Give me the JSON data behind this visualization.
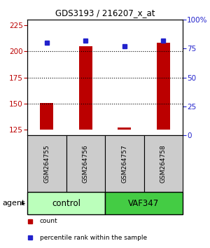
{
  "title": "GDS3193 / 216207_x_at",
  "samples": [
    "GSM264755",
    "GSM264756",
    "GSM264757",
    "GSM264758"
  ],
  "counts": [
    151,
    205,
    127,
    208
  ],
  "percentiles": [
    80,
    82,
    77,
    82
  ],
  "ylim_left": [
    120,
    230
  ],
  "ylim_right": [
    0,
    100
  ],
  "yticks_left": [
    125,
    150,
    175,
    200,
    225
  ],
  "yticks_right": [
    0,
    25,
    50,
    75,
    100
  ],
  "ytick_right_labels": [
    "0",
    "25",
    "50",
    "75",
    "100%"
  ],
  "bar_color": "#bb0000",
  "dot_color": "#2222cc",
  "bar_baseline": 125,
  "groups": [
    {
      "label": "control",
      "samples": [
        0,
        1
      ],
      "color": "#bbffbb"
    },
    {
      "label": "VAF347",
      "samples": [
        2,
        3
      ],
      "color": "#44cc44"
    }
  ],
  "legend_items": [
    {
      "color": "#bb0000",
      "label": "count"
    },
    {
      "color": "#2222cc",
      "label": "percentile rank within the sample"
    }
  ],
  "sample_box_color": "#cccccc",
  "grid_yticks": [
    150,
    175,
    200
  ]
}
